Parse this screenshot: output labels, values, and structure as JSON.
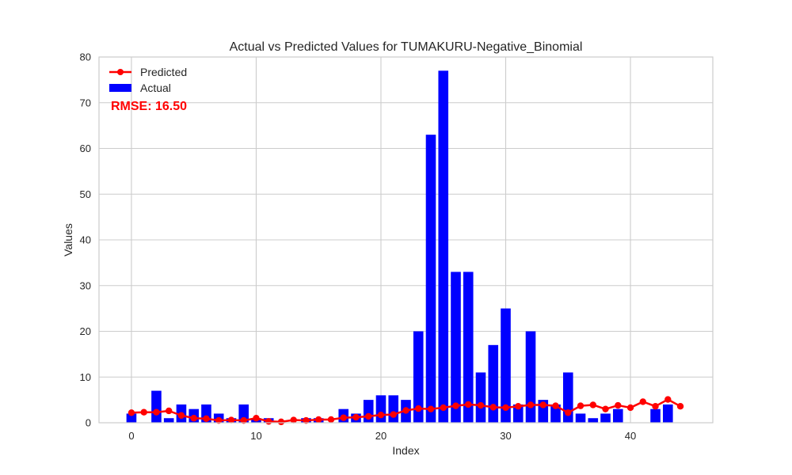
{
  "chart_data": {
    "type": "bar",
    "title": "Actual vs Predicted Values for TUMAKURU-Negative_Binomial",
    "xlabel": "Index",
    "ylabel": "Values",
    "xlim": [
      -2.6,
      46.6
    ],
    "ylim": [
      0,
      80
    ],
    "xticks": [
      0,
      10,
      20,
      30,
      40
    ],
    "yticks": [
      0,
      10,
      20,
      30,
      40,
      50,
      60,
      70,
      80
    ],
    "grid": true,
    "legend_placement": "upper-left",
    "annotation": "RMSE: 16.50",
    "colors": {
      "actual": "#0000ff",
      "predicted": "#ff0000",
      "annotation": "#ff0000",
      "grid": "#cccccc"
    },
    "series": [
      {
        "name": "Actual",
        "kind": "bar",
        "x": [
          0,
          1,
          2,
          3,
          4,
          5,
          6,
          7,
          8,
          9,
          10,
          11,
          12,
          13,
          14,
          15,
          16,
          17,
          18,
          19,
          20,
          21,
          22,
          23,
          24,
          25,
          26,
          27,
          28,
          29,
          30,
          31,
          32,
          33,
          34,
          35,
          36,
          37,
          38,
          39,
          40,
          41,
          42,
          43,
          44
        ],
        "values": [
          2,
          0,
          7,
          1,
          4,
          3,
          4,
          2,
          1,
          4,
          1,
          1,
          0,
          0,
          1,
          1,
          0,
          3,
          2,
          5,
          6,
          6,
          5,
          20,
          63,
          77,
          33,
          33,
          11,
          17,
          25,
          4,
          20,
          5,
          4,
          11,
          2,
          1,
          2,
          3,
          0,
          0,
          3,
          4,
          0
        ]
      },
      {
        "name": "Predicted",
        "kind": "line",
        "x": [
          0,
          1,
          2,
          3,
          4,
          5,
          6,
          7,
          8,
          9,
          10,
          11,
          12,
          13,
          14,
          15,
          16,
          17,
          18,
          19,
          20,
          21,
          22,
          23,
          24,
          25,
          26,
          27,
          28,
          29,
          30,
          31,
          32,
          33,
          34,
          35,
          36,
          37,
          38,
          39,
          40,
          41,
          42,
          43,
          44
        ],
        "values": [
          2.2,
          2.3,
          2.3,
          2.6,
          1.6,
          1.0,
          0.9,
          0.5,
          0.6,
          0.5,
          1.0,
          0.3,
          0.2,
          0.6,
          0.5,
          0.7,
          0.7,
          1.1,
          1.2,
          1.4,
          1.7,
          1.8,
          2.7,
          3.1,
          3.0,
          3.3,
          3.7,
          4.0,
          3.8,
          3.4,
          3.3,
          3.6,
          3.9,
          3.9,
          3.7,
          2.2,
          3.7,
          3.9,
          3.0,
          3.8,
          3.3,
          4.6,
          3.6,
          5.1,
          3.6
        ]
      }
    ]
  }
}
